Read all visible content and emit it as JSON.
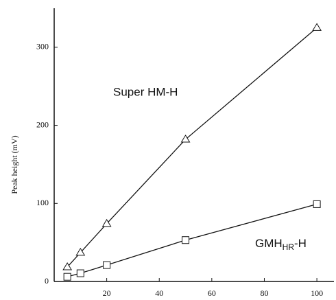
{
  "chart_data": {
    "type": "scatter",
    "y_label": "Peak height (mV)",
    "xlim": [
      0,
      106.5
    ],
    "ylim": [
      0,
      350
    ],
    "xticks": [
      20,
      40,
      60,
      80,
      100
    ],
    "yticks": [
      0,
      100,
      200,
      300
    ],
    "series": [
      {
        "name": "Super HM-H",
        "marker": "triangle",
        "color": "#111111",
        "x": [
          5,
          10,
          20,
          50,
          100
        ],
        "values": [
          18.5,
          37,
          74,
          182,
          325
        ]
      },
      {
        "name": "GMH",
        "name_sub": "HR",
        "name_suffix": "-H",
        "marker": "square",
        "color": "#111111",
        "x": [
          5,
          10,
          20,
          50,
          100
        ],
        "values": [
          6,
          10.5,
          21,
          53,
          99
        ]
      }
    ]
  }
}
